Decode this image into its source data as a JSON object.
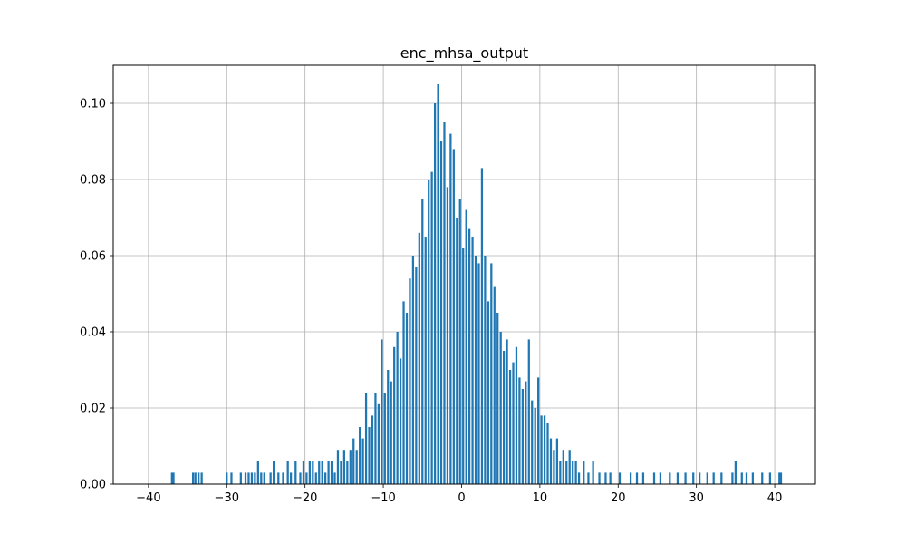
{
  "chart_data": {
    "type": "bar",
    "title": "enc_mhsa_output",
    "xlabel": "",
    "ylabel": "",
    "xlim": [
      -44.5,
      45.2
    ],
    "ylim": [
      0,
      0.11
    ],
    "grid": true,
    "bar_color": "#1f77b4",
    "x_ticks": [
      -40,
      -30,
      -20,
      -10,
      0,
      10,
      20,
      30,
      40
    ],
    "x_tick_labels": [
      "−40",
      "−30",
      "−20",
      "−10",
      "0",
      "10",
      "20",
      "30",
      "40"
    ],
    "y_ticks": [
      0,
      0.02,
      0.04,
      0.06,
      0.08,
      0.1
    ],
    "y_tick_labels": [
      "0.00",
      "0.02",
      "0.04",
      "0.06",
      "0.08",
      "0.10"
    ],
    "bin_width": 0.26,
    "x": [
      -37.0,
      -36.8,
      -34.3,
      -34.0,
      -33.6,
      -33.2,
      -30.0,
      -29.4,
      -28.2,
      -27.6,
      -27.2,
      -26.8,
      -26.4,
      -26.0,
      -25.6,
      -25.2,
      -24.4,
      -24.0,
      -23.4,
      -22.8,
      -22.2,
      -21.8,
      -21.2,
      -20.6,
      -20.2,
      -19.8,
      -19.4,
      -19.0,
      -18.6,
      -18.2,
      -17.8,
      -17.4,
      -17.0,
      -16.6,
      -16.2,
      -15.8,
      -15.4,
      -15.0,
      -14.6,
      -14.2,
      -13.8,
      -13.4,
      -13.0,
      -12.6,
      -12.2,
      -11.8,
      -11.4,
      -11.0,
      -10.6,
      -10.2,
      -9.8,
      -9.4,
      -9.0,
      -8.6,
      -8.2,
      -7.8,
      -7.4,
      -7.0,
      -6.6,
      -6.2,
      -5.8,
      -5.4,
      -5.0,
      -4.6,
      -4.2,
      -3.8,
      -3.4,
      -3.0,
      -2.6,
      -2.2,
      -1.8,
      -1.4,
      -1.0,
      -0.6,
      -0.2,
      0.2,
      0.6,
      1.0,
      1.4,
      1.8,
      2.2,
      2.6,
      3.0,
      3.4,
      3.8,
      4.2,
      4.6,
      5.0,
      5.4,
      5.8,
      6.2,
      6.6,
      7.0,
      7.4,
      7.8,
      8.2,
      8.6,
      9.0,
      9.4,
      9.8,
      10.2,
      10.6,
      11.0,
      11.4,
      11.8,
      12.2,
      12.6,
      13.0,
      13.4,
      13.8,
      14.2,
      14.6,
      15.0,
      15.6,
      16.2,
      16.8,
      17.6,
      18.4,
      19.0,
      20.2,
      21.6,
      22.4,
      23.2,
      24.6,
      25.4,
      26.6,
      27.6,
      28.6,
      29.6,
      30.4,
      31.4,
      32.2,
      33.2,
      34.6,
      35.0,
      35.8,
      36.4,
      37.2,
      38.4,
      39.4,
      40.6,
      40.8
    ],
    "values": [
      0.003,
      0.003,
      0.003,
      0.003,
      0.003,
      0.003,
      0.003,
      0.003,
      0.003,
      0.003,
      0.003,
      0.003,
      0.003,
      0.006,
      0.003,
      0.003,
      0.003,
      0.006,
      0.003,
      0.003,
      0.006,
      0.003,
      0.006,
      0.003,
      0.006,
      0.003,
      0.006,
      0.006,
      0.003,
      0.006,
      0.006,
      0.003,
      0.006,
      0.006,
      0.003,
      0.009,
      0.006,
      0.009,
      0.006,
      0.009,
      0.012,
      0.009,
      0.015,
      0.012,
      0.024,
      0.015,
      0.018,
      0.024,
      0.021,
      0.038,
      0.024,
      0.03,
      0.027,
      0.036,
      0.04,
      0.033,
      0.048,
      0.045,
      0.054,
      0.06,
      0.057,
      0.066,
      0.075,
      0.065,
      0.08,
      0.082,
      0.1,
      0.105,
      0.09,
      0.095,
      0.078,
      0.092,
      0.088,
      0.07,
      0.075,
      0.062,
      0.072,
      0.067,
      0.065,
      0.06,
      0.058,
      0.083,
      0.06,
      0.048,
      0.058,
      0.052,
      0.045,
      0.04,
      0.035,
      0.038,
      0.03,
      0.032,
      0.036,
      0.028,
      0.025,
      0.027,
      0.038,
      0.022,
      0.02,
      0.028,
      0.018,
      0.018,
      0.016,
      0.012,
      0.009,
      0.012,
      0.006,
      0.009,
      0.006,
      0.009,
      0.006,
      0.006,
      0.003,
      0.006,
      0.003,
      0.006,
      0.003,
      0.003,
      0.003,
      0.003,
      0.003,
      0.003,
      0.003,
      0.003,
      0.003,
      0.003,
      0.003,
      0.003,
      0.003,
      0.003,
      0.003,
      0.003,
      0.003,
      0.003,
      0.006,
      0.003,
      0.003,
      0.003,
      0.003,
      0.003,
      0.003,
      0.003
    ]
  }
}
